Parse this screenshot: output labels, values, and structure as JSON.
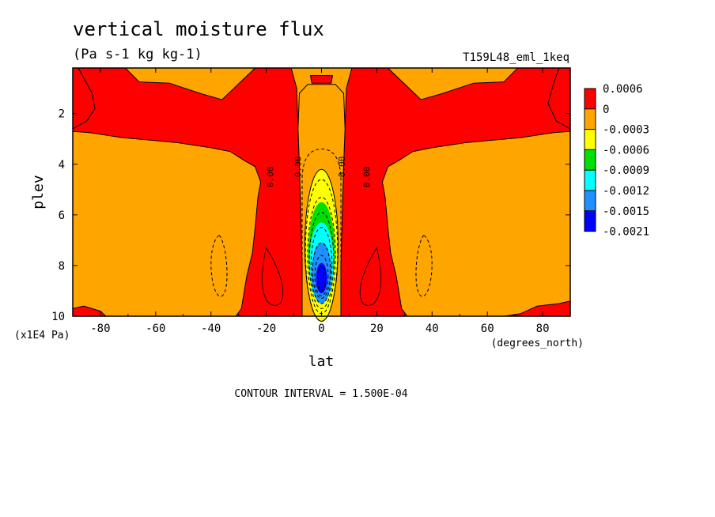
{
  "chart_data": {
    "type": "heatmap",
    "title": "vertical moisture flux",
    "units": "(Pa s-1 kg kg-1)",
    "run_id": "T159L48_eml_1keq",
    "xlabel": "lat",
    "x_units": "(degrees_north)",
    "ylabel": "plev",
    "y_units": "(x1E4 Pa)",
    "xlim": [
      -90,
      90
    ],
    "ylim": [
      10,
      0.2
    ],
    "xticks": [
      "-80",
      "-60",
      "-40",
      "-20",
      "0",
      "20",
      "40",
      "60",
      "80"
    ],
    "xtick_values": [
      -80,
      -60,
      -40,
      -20,
      0,
      20,
      40,
      60,
      80
    ],
    "yticks": [
      "2",
      "4",
      "6",
      "8",
      "10"
    ],
    "ytick_values": [
      2,
      4,
      6,
      8,
      10
    ],
    "contour_interval": "CONTOUR INTERVAL = 1.500E-04",
    "contour_labels": [
      "0.00",
      "0.00",
      "0.00",
      "0.00"
    ],
    "legend": {
      "position": "right",
      "labels": [
        "0.0006",
        "0",
        "-0.0003",
        "-0.0006",
        "-0.0009",
        "-0.0012",
        "-0.0015",
        "-0.0021"
      ],
      "colors": [
        "#ff0000",
        "#ffa500",
        "#ffff00",
        "#00e000",
        "#00ffff",
        "#1e90ff",
        "#0000ff"
      ]
    },
    "colors": {
      "positive": "#ff0000",
      "near_zero": "#ffa500",
      "neg_1": "#ffff00",
      "neg_2": "#00e000",
      "neg_3": "#00ffff",
      "neg_4": "#1e90ff",
      "neg_5": "#0000ff"
    }
  }
}
